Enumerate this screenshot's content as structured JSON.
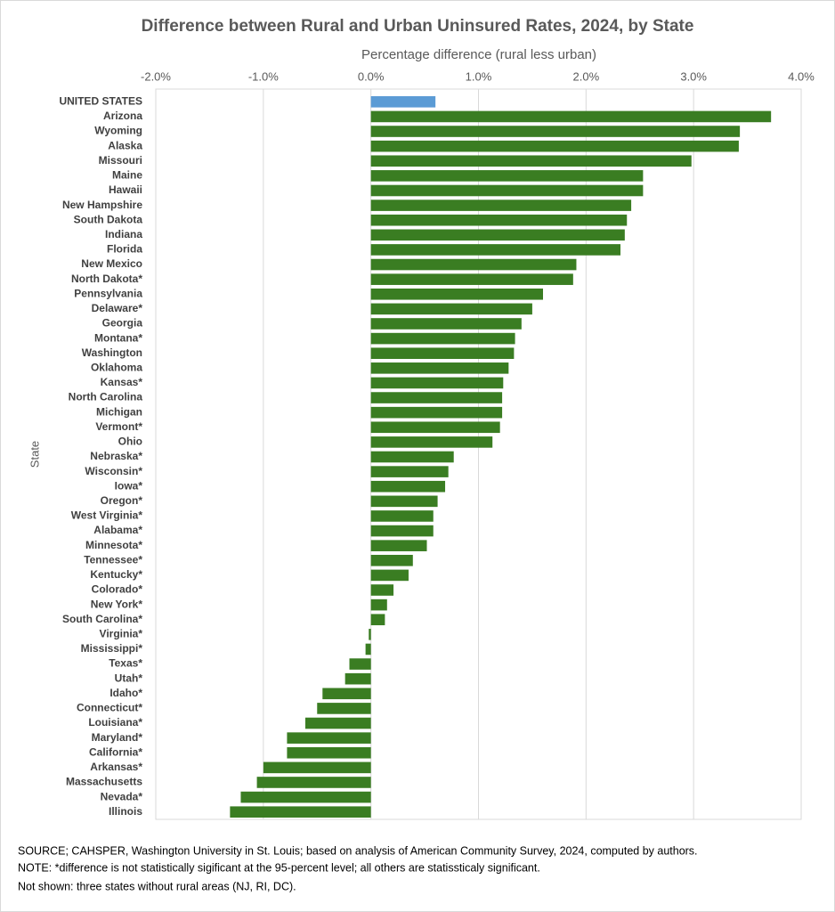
{
  "chart_data": {
    "type": "hbar",
    "title": "Difference between Rural and Urban Uninsured Rates, 2024, by State",
    "x_label": "Percentage difference (rural less urban)",
    "y_label": "State",
    "categories": [
      "UNITED STATES",
      "Arizona",
      "Wyoming",
      "Alaska",
      "Missouri",
      "Maine",
      "Hawaii",
      "New Hampshire",
      "South Dakota",
      "Indiana",
      "Florida",
      "New Mexico",
      "North Dakota*",
      "Pennsylvania",
      "Delaware*",
      "Georgia",
      "Montana*",
      "Washington",
      "Oklahoma",
      "Kansas*",
      "North Carolina",
      "Michigan",
      "Vermont*",
      "Ohio",
      "Nebraska*",
      "Wisconsin*",
      "Iowa*",
      "Oregon*",
      "West Virginia*",
      "Alabama*",
      "Minnesota*",
      "Tennessee*",
      "Kentucky*",
      "Colorado*",
      "New York*",
      "South Carolina*",
      "Virginia*",
      "Mississippi*",
      "Texas*",
      "Utah*",
      "Idaho*",
      "Connecticut*",
      "Louisiana*",
      "Maryland*",
      "California*",
      "Arkansas*",
      "Massachusetts",
      "Nevada*",
      "Illinois"
    ],
    "values": [
      0.6,
      3.72,
      3.43,
      3.42,
      2.98,
      2.53,
      2.53,
      2.42,
      2.38,
      2.36,
      2.32,
      1.91,
      1.88,
      1.6,
      1.5,
      1.4,
      1.34,
      1.33,
      1.28,
      1.23,
      1.22,
      1.22,
      1.2,
      1.13,
      0.77,
      0.72,
      0.69,
      0.62,
      0.58,
      0.58,
      0.52,
      0.39,
      0.35,
      0.21,
      0.15,
      0.13,
      -0.02,
      -0.05,
      -0.2,
      -0.24,
      -0.45,
      -0.5,
      -0.61,
      -0.78,
      -0.78,
      -1.0,
      -1.06,
      -1.21,
      -1.31
    ],
    "color": "#3a7d22",
    "highlight_color": "#5b9bd5",
    "xlim": [
      -2,
      4
    ],
    "xticks": [
      {
        "value": -2,
        "label": "-2.0%"
      },
      {
        "value": -1,
        "label": "-1.0%"
      },
      {
        "value": 0,
        "label": "0.0%"
      },
      {
        "value": 1,
        "label": "1.0%"
      },
      {
        "value": 2,
        "label": "2.0%"
      },
      {
        "value": 3,
        "label": "3.0%"
      },
      {
        "value": 4,
        "label": "4.0%"
      }
    ],
    "grid": true,
    "notes": [
      "SOURCE; CAHSPER, Washington University in St. Louis; based on analysis of American Community Survey, 2024, computed by authors.",
      "NOTE: *difference is not statistically sigificant at the 95-percent level; all others are statissticaly significant.",
      "Not shown: three states without rural areas (NJ, RI, DC)."
    ]
  }
}
